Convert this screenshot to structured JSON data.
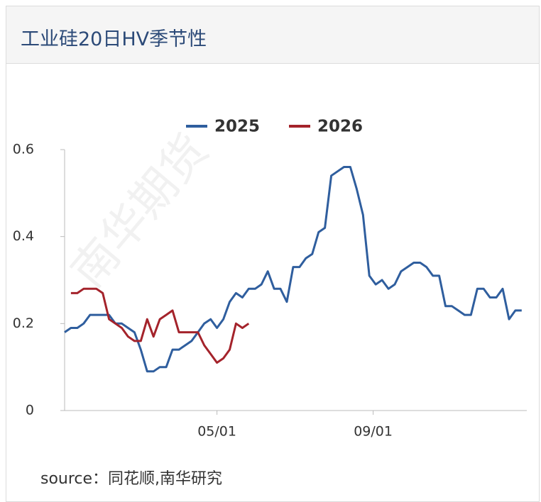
{
  "header": {
    "title": "工业硅20日HV季节性"
  },
  "chart_data": {
    "type": "line",
    "x": [
      1,
      6,
      11,
      16,
      21,
      26,
      31,
      36,
      41,
      46,
      51,
      56,
      61,
      66,
      71,
      76,
      81,
      86,
      91,
      96,
      101,
      106,
      111,
      116,
      121,
      126,
      131,
      136,
      141,
      146,
      151,
      156,
      161,
      166,
      171,
      176,
      181,
      186,
      191,
      196,
      201,
      206,
      211,
      216,
      221,
      226,
      231,
      236,
      241,
      246,
      251,
      256,
      261,
      266,
      271,
      276,
      281,
      286,
      291,
      296,
      301,
      306,
      311,
      316,
      321,
      326,
      331,
      336,
      341,
      346,
      351,
      356,
      361
    ],
    "xlim": [
      1,
      365
    ],
    "xticks": [
      {
        "value": 121,
        "label": "05/01"
      },
      {
        "value": 244,
        "label": "09/01"
      }
    ],
    "ylim": [
      0,
      0.6
    ],
    "yticks": [
      0,
      0.2,
      0.4,
      0.6
    ],
    "legend": "top",
    "series": [
      {
        "name": "2025",
        "color": "#2f5e9e",
        "values": [
          0.18,
          0.19,
          0.19,
          0.2,
          0.22,
          0.22,
          0.22,
          0.22,
          0.2,
          0.2,
          0.19,
          0.18,
          0.14,
          0.09,
          0.09,
          0.1,
          0.1,
          0.14,
          0.14,
          0.15,
          0.16,
          0.18,
          0.2,
          0.21,
          0.19,
          0.21,
          0.25,
          0.27,
          0.26,
          0.28,
          0.28,
          0.29,
          0.32,
          0.28,
          0.28,
          0.25,
          0.33,
          0.33,
          0.35,
          0.36,
          0.41,
          0.42,
          0.54,
          0.55,
          0.56,
          0.56,
          0.51,
          0.45,
          0.31,
          0.29,
          0.3,
          0.28,
          0.29,
          0.32,
          0.33,
          0.34,
          0.34,
          0.33,
          0.31,
          0.31,
          0.24,
          0.24,
          0.23,
          0.22,
          0.22,
          0.28,
          0.28,
          0.26,
          0.26,
          0.28,
          0.21,
          0.23,
          0.23
        ]
      },
      {
        "name": "2026",
        "color": "#a4232b",
        "values": [
          null,
          0.27,
          0.27,
          0.28,
          0.28,
          0.28,
          0.27,
          0.21,
          0.2,
          0.19,
          0.17,
          0.16,
          0.16,
          0.21,
          0.17,
          0.21,
          0.22,
          0.23,
          0.18,
          0.18,
          0.18,
          0.18,
          0.15,
          0.13,
          0.11,
          0.12,
          0.14,
          0.2,
          0.19,
          0.2,
          null,
          null,
          null,
          null,
          null,
          null,
          null,
          null,
          null,
          null,
          null,
          null,
          null,
          null,
          null,
          null,
          null,
          null,
          null,
          null,
          null,
          null,
          null,
          null,
          null,
          null,
          null,
          null,
          null,
          null,
          null,
          null,
          null,
          null,
          null,
          null,
          null,
          null,
          null,
          null,
          null,
          null,
          null
        ]
      }
    ]
  },
  "watermark": "南华期货",
  "footer": {
    "source": "source：同花顺,南华研究"
  }
}
